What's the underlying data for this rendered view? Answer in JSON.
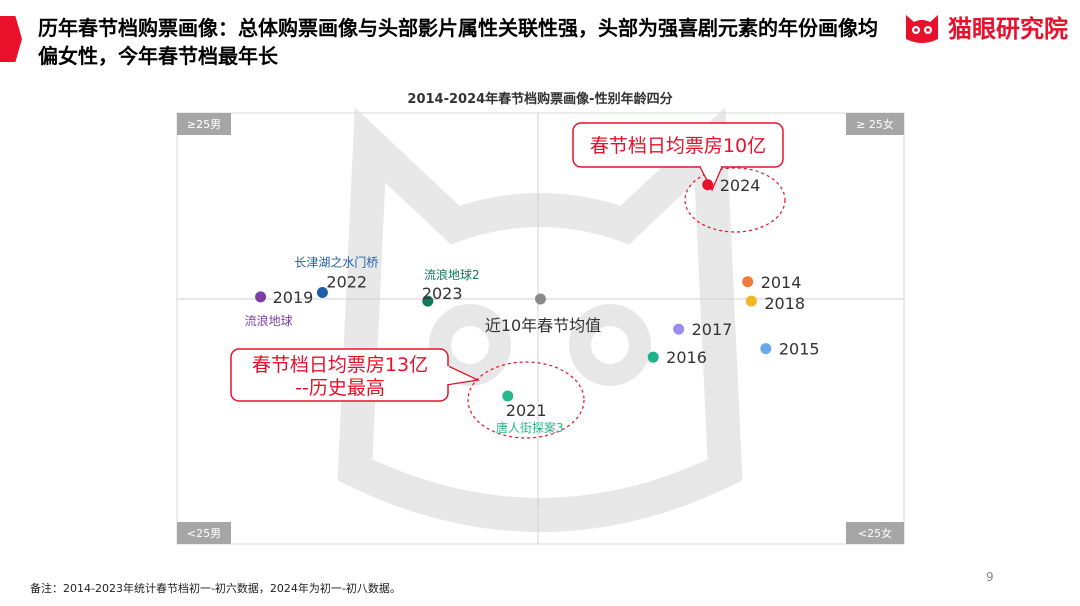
{
  "header": {
    "title": "历年春节档购票画像：总体购票画像与头部影片属性关联性强，头部为强喜剧元素的年份画像均偏女性，今年春节档最年长",
    "logo_text": "猫眼研究院",
    "brand_color": "#e8102a"
  },
  "chart_data": {
    "type": "scatter",
    "title": "2014-2024年春节档购票画像-性别年龄四分",
    "quadrant_labels": {
      "top_left": "≥25男",
      "top_right": "≥ 25女",
      "bottom_left": "<25男",
      "bottom_right": "<25女"
    },
    "x_range": [
      -1,
      1
    ],
    "y_range": [
      -1,
      1
    ],
    "center_label": "近10年春节均值",
    "points": [
      {
        "year": "2024",
        "x": 0.46,
        "y": 0.53,
        "color": "#e8102a",
        "film": ""
      },
      {
        "year": "2014",
        "x": 0.57,
        "y": 0.08,
        "color": "#f07c3c",
        "film": ""
      },
      {
        "year": "2018",
        "x": 0.58,
        "y": -0.01,
        "color": "#f3b724",
        "film": ""
      },
      {
        "year": "2017",
        "x": 0.38,
        "y": -0.14,
        "color": "#9b8cf0",
        "film": ""
      },
      {
        "year": "2015",
        "x": 0.62,
        "y": -0.23,
        "color": "#6aa8ea",
        "film": ""
      },
      {
        "year": "2016",
        "x": 0.31,
        "y": -0.27,
        "color": "#1fb08c",
        "film": ""
      },
      {
        "year": "2021",
        "x": -0.09,
        "y": -0.45,
        "color": "#27b887",
        "film": "唐人街探案3"
      },
      {
        "year": "2019",
        "x": -0.77,
        "y": 0.01,
        "color": "#7b3fa6",
        "film": "流浪地球"
      },
      {
        "year": "2022",
        "x": -0.6,
        "y": 0.03,
        "color": "#1f5fa8",
        "film": "长津湖之水门桥"
      },
      {
        "year": "2023",
        "x": -0.31,
        "y": -0.01,
        "color": "#0f7a5c",
        "film": "流浪地球2"
      },
      {
        "year": "",
        "x": 0.0,
        "y": 0.0,
        "color": "#8a8a8a",
        "film": ""
      }
    ],
    "callouts": [
      {
        "lines": [
          "春节档日均票房10亿"
        ],
        "target": "2024"
      },
      {
        "lines": [
          "春节档日均票房13亿",
          "--历史最高"
        ],
        "target": "2021"
      }
    ],
    "grid": false,
    "legend": "none"
  },
  "footer": {
    "note": "备注：2014-2023年统计春节档初一-初六数据，2024年为初一-初八数据。",
    "page_number": "9"
  }
}
